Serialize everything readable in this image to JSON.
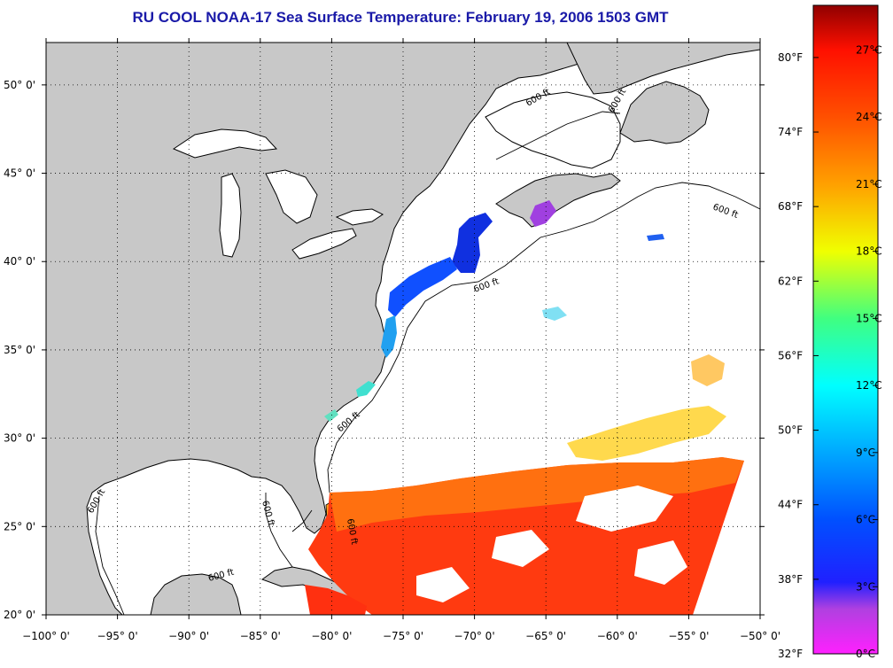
{
  "title": "RU COOL  NOAA-17  Sea Surface Temperature:  February 19, 2006 1503 GMT",
  "map": {
    "lon_range": [
      -100,
      -50
    ],
    "lat_range": [
      20,
      52.4
    ],
    "lon_ticks": [
      {
        "value": -100,
        "label": "−100° 0'"
      },
      {
        "value": -95,
        "label": "−95° 0'"
      },
      {
        "value": -90,
        "label": "−90° 0'"
      },
      {
        "value": -85,
        "label": "−85° 0'"
      },
      {
        "value": -80,
        "label": "−80° 0'"
      },
      {
        "value": -75,
        "label": "−75° 0'"
      },
      {
        "value": -70,
        "label": "−70° 0'"
      },
      {
        "value": -65,
        "label": "−65° 0'"
      },
      {
        "value": -60,
        "label": "−60° 0'"
      },
      {
        "value": -55,
        "label": "−55° 0'"
      },
      {
        "value": -50,
        "label": "−50° 0'"
      }
    ],
    "lat_ticks": [
      {
        "value": 20,
        "label": "20° 0'"
      },
      {
        "value": 25,
        "label": "25° 0'"
      },
      {
        "value": 30,
        "label": "30° 0'"
      },
      {
        "value": 35,
        "label": "35° 0'"
      },
      {
        "value": 40,
        "label": "40° 0'"
      },
      {
        "value": 45,
        "label": "45° 0'"
      },
      {
        "value": 50,
        "label": "50° 0'"
      }
    ],
    "isobath_labels": [
      "600 ft",
      "600 ft",
      "600 ft",
      "600 ft",
      "600 ft",
      "600 ft",
      "600 ft",
      "600 ft",
      "600 ft"
    ],
    "colors": {
      "land": "#c8c8c8",
      "ocean": "#ffffff",
      "grid": "#000000"
    }
  },
  "colorbar": {
    "range_c": [
      0,
      29
    ],
    "fahrenheit_ticks": [
      {
        "value": 32,
        "label": "32°F"
      },
      {
        "value": 38,
        "label": "38°F"
      },
      {
        "value": 44,
        "label": "44°F"
      },
      {
        "value": 50,
        "label": "50°F"
      },
      {
        "value": 56,
        "label": "56°F"
      },
      {
        "value": 62,
        "label": "62°F"
      },
      {
        "value": 68,
        "label": "68°F"
      },
      {
        "value": 74,
        "label": "74°F"
      },
      {
        "value": 80,
        "label": "80°F"
      }
    ],
    "celsius_ticks": [
      {
        "value": 0,
        "label": "0°C"
      },
      {
        "value": 3,
        "label": "3°C"
      },
      {
        "value": 6,
        "label": "6°C"
      },
      {
        "value": 9,
        "label": "9°C"
      },
      {
        "value": 12,
        "label": "12°C"
      },
      {
        "value": 15,
        "label": "15°C"
      },
      {
        "value": 18,
        "label": "18°C"
      },
      {
        "value": 21,
        "label": "21°C"
      },
      {
        "value": 24,
        "label": "24°C"
      },
      {
        "value": 27,
        "label": "27°C"
      }
    ],
    "stops": [
      {
        "temp_c": 0,
        "color": "#ff20ff"
      },
      {
        "temp_c": 2,
        "color": "#b040e0"
      },
      {
        "temp_c": 3.2,
        "color": "#2020ff"
      },
      {
        "temp_c": 6,
        "color": "#0050ff"
      },
      {
        "temp_c": 9,
        "color": "#00a8ff"
      },
      {
        "temp_c": 12,
        "color": "#00ffff"
      },
      {
        "temp_c": 15,
        "color": "#40ff80"
      },
      {
        "temp_c": 18,
        "color": "#f0ff00"
      },
      {
        "temp_c": 21,
        "color": "#ffa000"
      },
      {
        "temp_c": 24,
        "color": "#ff5000"
      },
      {
        "temp_c": 27,
        "color": "#ff1000"
      },
      {
        "temp_c": 29,
        "color": "#900000"
      }
    ]
  }
}
